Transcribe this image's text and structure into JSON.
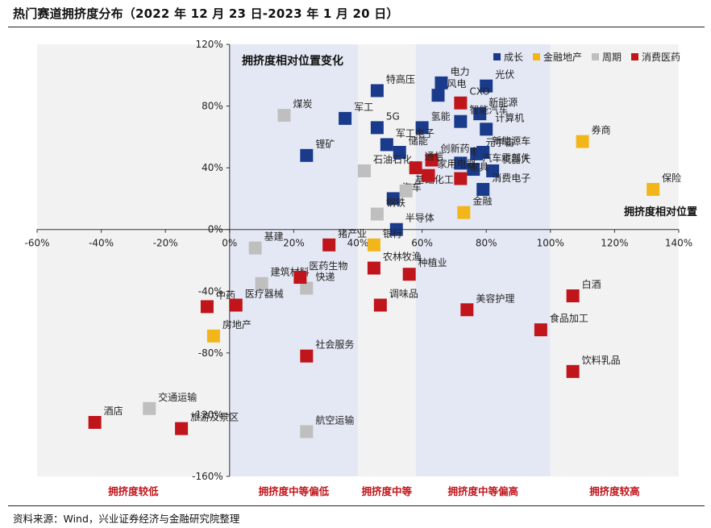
{
  "title": "热门赛道拥挤度分布（2022 年 12 月 23 日-2023 年 1 月 20 日）",
  "source": "资料来源：Wind，兴业证券经济与金融研究院整理",
  "chart_data": {
    "type": "scatter",
    "title": "拥挤度相对位置变化",
    "xlabel": "拥挤度相对位置",
    "ylabel": "",
    "xlim": [
      -0.6,
      1.4
    ],
    "ylim": [
      -1.6,
      1.2
    ],
    "x_ticks": [
      -0.6,
      -0.4,
      -0.2,
      0,
      0.2,
      0.4,
      0.6,
      0.8,
      1.0,
      1.2,
      1.4
    ],
    "x_tick_labels": [
      "-60%",
      "-40%",
      "-20%",
      "0%",
      "20%",
      "40%",
      "60%",
      "80%",
      "100%",
      "120%",
      "140%"
    ],
    "y_ticks": [
      -1.6,
      -1.2,
      -0.8,
      -0.4,
      0,
      0.4,
      0.8,
      1.2
    ],
    "y_tick_labels": [
      "-160%",
      "-120%",
      "-80%",
      "-40%",
      "0%",
      "40%",
      "80%",
      "120%"
    ],
    "grid": false,
    "legend_position": "top-right",
    "zones": [
      {
        "range": [
          -0.6,
          0.0
        ],
        "label": "拥挤度较低",
        "color": "#f2f2f2"
      },
      {
        "range": [
          0.0,
          0.4
        ],
        "label": "拥挤度中等偏低",
        "color": "#e4e8f4"
      },
      {
        "range": [
          0.4,
          0.58
        ],
        "label": "拥挤度中等",
        "color": "#f2f2f2"
      },
      {
        "range": [
          0.58,
          1.0
        ],
        "label": "拥挤度中等偏高",
        "color": "#e4e8f4"
      },
      {
        "range": [
          1.0,
          1.4
        ],
        "label": "拥挤度较高",
        "color": "#f2f2f2"
      }
    ],
    "colors": {
      "成长": "#1a3a8c",
      "金融地产": "#f2b61a",
      "周期": "#bfbfbf",
      "消费医药": "#c0151b"
    },
    "series": [
      {
        "name": "成长",
        "points": [
          {
            "label": "电力",
            "x": 0.66,
            "y": 0.95
          },
          {
            "label": "光伏",
            "x": 0.8,
            "y": 0.93
          },
          {
            "label": "特高压",
            "x": 0.46,
            "y": 0.9
          },
          {
            "label": "风电",
            "x": 0.65,
            "y": 0.87
          },
          {
            "label": "军工",
            "x": 0.36,
            "y": 0.72
          },
          {
            "label": "新能源",
            "x": 0.78,
            "y": 0.75
          },
          {
            "label": "智能汽车",
            "x": 0.72,
            "y": 0.7
          },
          {
            "label": "5G",
            "x": 0.46,
            "y": 0.66
          },
          {
            "label": "氢能",
            "x": 0.6,
            "y": 0.66
          },
          {
            "label": "计算机",
            "x": 0.8,
            "y": 0.65
          },
          {
            "label": "军工电子",
            "x": 0.49,
            "y": 0.55
          },
          {
            "label": "储能",
            "x": 0.53,
            "y": 0.5
          },
          {
            "label": "元宇宙",
            "x": 0.77,
            "y": 0.49
          },
          {
            "label": "锂矿",
            "x": 0.24,
            "y": 0.48
          },
          {
            "label": "电网",
            "x": 0.72,
            "y": 0.43
          },
          {
            "label": "新能源车",
            "x": 0.79,
            "y": 0.5
          },
          {
            "label": "机器人",
            "x": 0.82,
            "y": 0.38
          },
          {
            "label": "汽车零部件",
            "x": 0.76,
            "y": 0.39
          },
          {
            "label": "消费电子",
            "x": 0.79,
            "y": 0.26
          },
          {
            "label": "汽车",
            "x": 0.51,
            "y": 0.2
          },
          {
            "label": "半导体",
            "x": 0.52,
            "y": 0.0
          }
        ]
      },
      {
        "name": "金融地产",
        "points": [
          {
            "label": "券商",
            "x": 1.1,
            "y": 0.57
          },
          {
            "label": "保险",
            "x": 1.32,
            "y": 0.26
          },
          {
            "label": "金融",
            "x": 0.73,
            "y": 0.11
          },
          {
            "label": "银行",
            "x": 0.45,
            "y": -0.1
          },
          {
            "label": "房地产",
            "x": -0.05,
            "y": -0.69
          }
        ]
      },
      {
        "name": "周期",
        "points": [
          {
            "label": "煤炭",
            "x": 0.17,
            "y": 0.74
          },
          {
            "label": "石油石化",
            "x": 0.42,
            "y": 0.38
          },
          {
            "label": "基础化工",
            "x": 0.55,
            "y": 0.25
          },
          {
            "label": "钢铁",
            "x": 0.46,
            "y": 0.1
          },
          {
            "label": "基建",
            "x": 0.08,
            "y": -0.12
          },
          {
            "label": "建筑材料",
            "x": 0.1,
            "y": -0.35
          },
          {
            "label": "快递",
            "x": 0.24,
            "y": -0.38
          },
          {
            "label": "交通运输",
            "x": -0.25,
            "y": -1.16
          },
          {
            "label": "航空运输",
            "x": 0.24,
            "y": -1.31
          }
        ]
      },
      {
        "name": "消费医药",
        "points": [
          {
            "label": "CXO",
            "x": 0.72,
            "y": 0.82
          },
          {
            "label": "创新药",
            "x": 0.63,
            "y": 0.45
          },
          {
            "label": "通信",
            "x": 0.58,
            "y": 0.4
          },
          {
            "label": "家用电器",
            "x": 0.62,
            "y": 0.35
          },
          {
            "label": "家具",
            "x": 0.72,
            "y": 0.33
          },
          {
            "label": "猪产业",
            "x": 0.31,
            "y": -0.1
          },
          {
            "label": "医药生物",
            "x": 0.22,
            "y": -0.31
          },
          {
            "label": "农林牧渔",
            "x": 0.45,
            "y": -0.25
          },
          {
            "label": "种植业",
            "x": 0.56,
            "y": -0.29
          },
          {
            "label": "调味品",
            "x": 0.47,
            "y": -0.49
          },
          {
            "label": "美容护理",
            "x": 0.74,
            "y": -0.52
          },
          {
            "label": "中药",
            "x": -0.07,
            "y": -0.5
          },
          {
            "label": "医疗器械",
            "x": 0.02,
            "y": -0.49
          },
          {
            "label": "白酒",
            "x": 1.07,
            "y": -0.43
          },
          {
            "label": "食品加工",
            "x": 0.97,
            "y": -0.65
          },
          {
            "label": "社会服务",
            "x": 0.24,
            "y": -0.82
          },
          {
            "label": "饮料乳品",
            "x": 1.07,
            "y": -0.92
          },
          {
            "label": "酒店",
            "x": -0.42,
            "y": -1.25
          },
          {
            "label": "旅游及景区",
            "x": -0.15,
            "y": -1.29
          }
        ]
      }
    ]
  }
}
